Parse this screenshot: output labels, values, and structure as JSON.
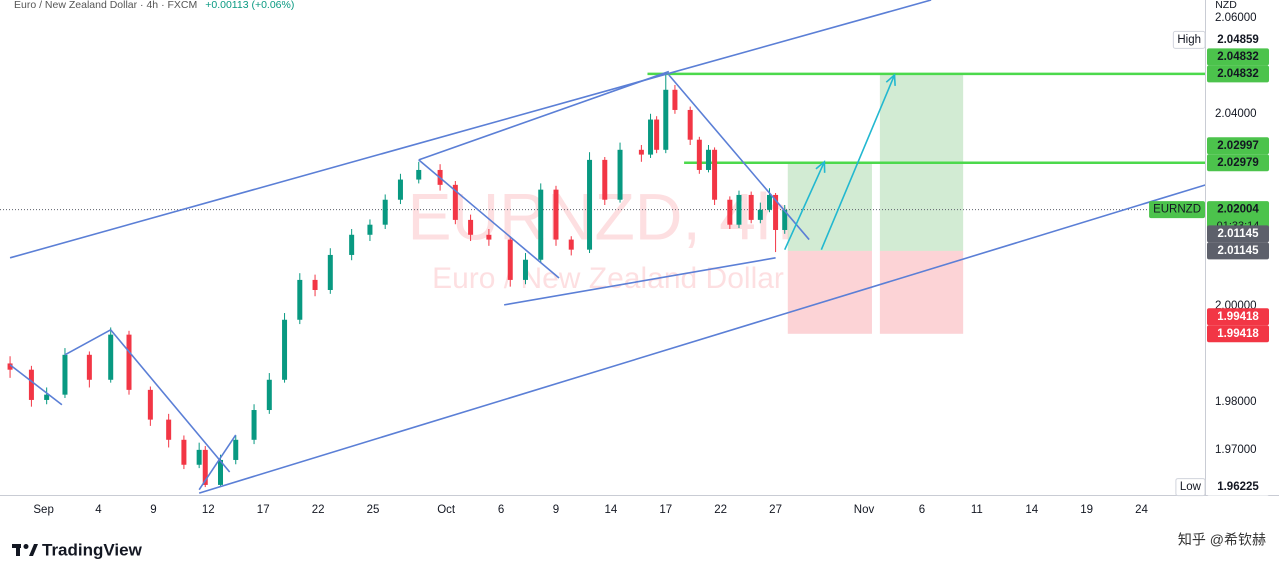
{
  "chart_data": {
    "type": "candlestick",
    "title": "Euro / New Zealand Dollar · 4h · FXCM",
    "change": "+0.00113 (+0.06%)",
    "y_label": "NZD",
    "watermark": "EURNZD, 4h",
    "watermark_subtitle": "Euro / New Zealand Dollar",
    "up_color": "#089981",
    "down_color": "#f23645",
    "xlim": [
      -3.3,
      391.8
    ],
    "ylim": [
      1.9606,
      2.0637
    ],
    "grid": false,
    "xticks": [
      {
        "value": 11,
        "label": "Sep"
      },
      {
        "value": 29,
        "label": "4"
      },
      {
        "value": 47,
        "label": "9"
      },
      {
        "value": 65,
        "label": "12"
      },
      {
        "value": 83,
        "label": "17"
      },
      {
        "value": 101,
        "label": "22"
      },
      {
        "value": 119,
        "label": "25"
      },
      {
        "value": 143,
        "label": "Oct"
      },
      {
        "value": 161,
        "label": "6"
      },
      {
        "value": 179,
        "label": "9"
      },
      {
        "value": 197,
        "label": "14"
      },
      {
        "value": 215,
        "label": "17"
      },
      {
        "value": 233,
        "label": "22"
      },
      {
        "value": 251,
        "label": "27"
      },
      {
        "value": 280,
        "label": "Nov"
      },
      {
        "value": 299,
        "label": "6"
      },
      {
        "value": 317,
        "label": "11"
      },
      {
        "value": 335,
        "label": "14"
      },
      {
        "value": 353,
        "label": "19"
      },
      {
        "value": 371,
        "label": "24"
      }
    ],
    "yticks": [
      {
        "value": 2.06,
        "label": "2.06000"
      },
      {
        "value": 2.04,
        "label": "2.04000"
      },
      {
        "value": 2.0,
        "label": "2.00000"
      },
      {
        "value": 1.98,
        "label": "1.98000"
      },
      {
        "value": 1.97,
        "label": "1.97000"
      }
    ],
    "x": [
      0,
      7,
      12,
      18,
      26,
      33,
      39,
      46,
      52,
      57,
      62,
      64,
      69,
      74,
      80,
      85,
      90,
      95,
      100,
      105,
      112,
      118,
      123,
      128,
      134,
      141,
      146,
      151,
      157,
      164,
      169,
      174,
      179,
      184,
      190,
      195,
      200,
      207,
      210,
      212,
      215,
      218,
      223,
      226,
      229,
      231,
      236,
      239,
      243,
      246,
      249,
      251,
      254
    ],
    "open": [
      1.988,
      1.9867,
      1.9804,
      1.9815,
      1.9898,
      1.9846,
      1.994,
      1.9825,
      1.9763,
      1.9721,
      1.9669,
      1.97,
      1.9627,
      1.9679,
      1.9721,
      1.9783,
      1.9846,
      1.9971,
      2.0054,
      2.0033,
      2.0106,
      2.0148,
      2.0169,
      2.0221,
      2.0263,
      2.0283,
      2.0252,
      2.0179,
      2.0148,
      2.0138,
      2.0054,
      2.0096,
      2.0242,
      2.0138,
      2.0117,
      2.0304,
      2.0221,
      2.0325,
      2.0315,
      2.0388,
      2.0325,
      2.045,
      2.0408,
      2.0346,
      2.0283,
      2.0325,
      2.0221,
      2.0169,
      2.0231,
      2.0179,
      2.02,
      2.0231,
      2.0158
    ],
    "high": [
      1.9895,
      1.9875,
      1.983,
      1.9912,
      1.9905,
      1.9955,
      1.9948,
      1.9832,
      1.9775,
      1.973,
      1.9715,
      1.9708,
      1.969,
      1.973,
      1.9795,
      1.986,
      1.9985,
      2.0068,
      2.0065,
      2.012,
      2.016,
      2.018,
      2.0232,
      2.0275,
      2.03,
      2.0295,
      2.026,
      2.019,
      2.016,
      2.0145,
      2.011,
      2.0255,
      2.025,
      2.0145,
      2.032,
      2.031,
      2.034,
      2.0335,
      2.04,
      2.0395,
      2.04859,
      2.046,
      2.0415,
      2.0352,
      2.0335,
      2.033,
      2.0228,
      2.024,
      2.0238,
      2.0215,
      2.0245,
      2.0235,
      2.021
    ],
    "low": [
      1.985,
      1.979,
      1.9795,
      1.9808,
      1.983,
      1.984,
      1.9815,
      1.975,
      1.9705,
      1.966,
      1.9662,
      1.96225,
      1.9625,
      1.967,
      1.9712,
      1.9775,
      1.984,
      1.9962,
      2.002,
      2.0025,
      2.0095,
      2.0135,
      2.016,
      2.0212,
      2.0255,
      2.024,
      2.017,
      2.0135,
      2.0125,
      2.004,
      2.0045,
      2.009,
      2.0125,
      2.0105,
      2.011,
      2.021,
      2.0215,
      2.03,
      2.0308,
      2.0318,
      2.0318,
      2.04,
      2.0335,
      2.0275,
      2.0278,
      2.021,
      2.016,
      2.0162,
      2.0172,
      2.0172,
      2.0195,
      2.0112,
      2.015
    ],
    "close": [
      1.9867,
      1.9804,
      1.9815,
      1.9898,
      1.9846,
      1.994,
      1.9825,
      1.9763,
      1.9721,
      1.9669,
      1.97,
      1.9627,
      1.9679,
      1.9721,
      1.9783,
      1.9846,
      1.9971,
      2.0054,
      2.0033,
      2.0106,
      2.0148,
      2.0169,
      2.0221,
      2.0263,
      2.0283,
      2.0252,
      2.0179,
      2.0148,
      2.0138,
      2.0054,
      2.0096,
      2.0242,
      2.0138,
      2.0117,
      2.0304,
      2.0221,
      2.0325,
      2.0315,
      2.0388,
      2.0325,
      2.045,
      2.0408,
      2.0346,
      2.0283,
      2.0325,
      2.0221,
      2.0169,
      2.0231,
      2.0179,
      2.02,
      2.0231,
      2.0158,
      2.02
    ],
    "trend_line_color": "#5b7fd6",
    "trend_lines": [
      [
        [
          0,
          2.01
        ],
        [
          302,
          2.0637
        ]
      ],
      [
        [
          62,
          1.961
        ],
        [
          392,
          2.0252
        ]
      ],
      [
        [
          134,
          2.0304
        ],
        [
          216,
          2.0488
        ]
      ],
      [
        [
          162,
          2.0002
        ],
        [
          251,
          2.01
        ]
      ],
      [
        [
          134,
          2.0304
        ],
        [
          180,
          2.0058
        ]
      ],
      [
        [
          216,
          2.0481
        ],
        [
          262,
          2.0138
        ]
      ],
      [
        [
          0,
          1.9877
        ],
        [
          17,
          1.9794
        ]
      ],
      [
        [
          18,
          1.9898
        ],
        [
          33,
          1.995
        ]
      ],
      [
        [
          33,
          1.995
        ],
        [
          72,
          1.9654
        ]
      ],
      [
        [
          62,
          1.9617
        ],
        [
          74,
          1.9731
        ]
      ]
    ],
    "arrow_color": "#22b8d0",
    "arrows": [
      [
        [
          254,
          2.0117
        ],
        [
          267,
          2.03
        ]
      ],
      [
        [
          266,
          2.0117
        ],
        [
          290,
          2.0481
        ]
      ]
    ],
    "horizontal_line_color": "#4cd94c",
    "horizontal_lines": [
      {
        "value": 2.04832,
        "from": 209
      },
      {
        "value": 2.02979,
        "from": 221
      }
    ],
    "positions": [
      {
        "from": 255,
        "to": 282.6,
        "entry": 2.01145,
        "target": 2.02979,
        "stop": 1.99418
      },
      {
        "from": 285.2,
        "to": 312.5,
        "entry": 2.01145,
        "target": 2.04832,
        "stop": 1.99418
      }
    ],
    "price_labels": [
      {
        "value": 2.04859,
        "tag": "High",
        "color": "#ffffff",
        "text_color": "#131722"
      },
      {
        "value": 2.04832,
        "color": "#4cc34c",
        "text_color": "#131722"
      },
      {
        "value": 2.04832,
        "color": "#4cc34c",
        "text_color": "#131722"
      },
      {
        "value": 2.02997,
        "color": "#4cc34c",
        "text_color": "#131722"
      },
      {
        "value": 2.02979,
        "color": "#4cc34c",
        "text_color": "#131722"
      },
      {
        "value": 2.02004,
        "tag": "EURNZD",
        "countdown": "01:33:14",
        "color": "#4cc34c",
        "text_color": "#131722"
      },
      {
        "value": 2.01145,
        "color": "#5d606b",
        "text_color": "#ffffff"
      },
      {
        "value": 2.01145,
        "color": "#5d606b",
        "text_color": "#ffffff"
      },
      {
        "value": 1.99418,
        "color": "#f23645",
        "text_color": "#ffffff"
      },
      {
        "value": 1.99418,
        "color": "#f23645",
        "text_color": "#ffffff"
      },
      {
        "value": 1.96225,
        "tag": "Low",
        "color": "#ffffff",
        "text_color": "#131722"
      }
    ]
  },
  "footer": {
    "brand": "TradingView",
    "credit": "知乎 @希钦赫"
  }
}
